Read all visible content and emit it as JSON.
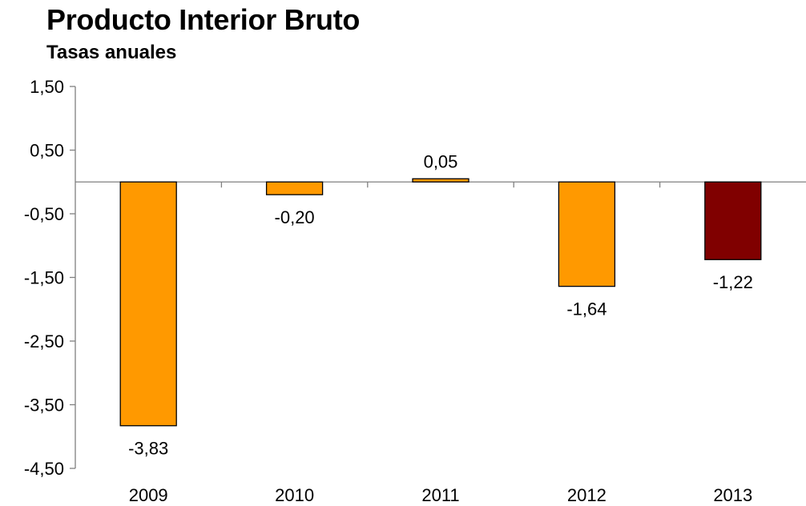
{
  "chart_data": {
    "type": "bar",
    "title": "Producto Interior Bruto",
    "subtitle": "Tasas anuales",
    "categories": [
      "2009",
      "2010",
      "2011",
      "2012",
      "2013"
    ],
    "values": [
      -3.83,
      -0.2,
      0.05,
      -1.64,
      -1.22
    ],
    "value_labels": [
      "-3,83",
      "-0,20",
      "0,05",
      "-1,64",
      "-1,22"
    ],
    "y_ticks": [
      1.5,
      0.5,
      -0.5,
      -1.5,
      -2.5,
      -3.5,
      -4.5
    ],
    "y_tick_labels": [
      "1,50",
      "0,50",
      "-0,50",
      "-1,50",
      "-2,50",
      "-3,50",
      "-4,50"
    ],
    "ylim": [
      -4.5,
      1.5
    ],
    "xlabel": "",
    "ylabel": "",
    "grid": false,
    "legend": "none",
    "colors": {
      "bar": "#FF9900",
      "highlight": "#800000",
      "highlight_index": 4,
      "bar_stroke": "#000000",
      "axis": "#808080"
    }
  }
}
